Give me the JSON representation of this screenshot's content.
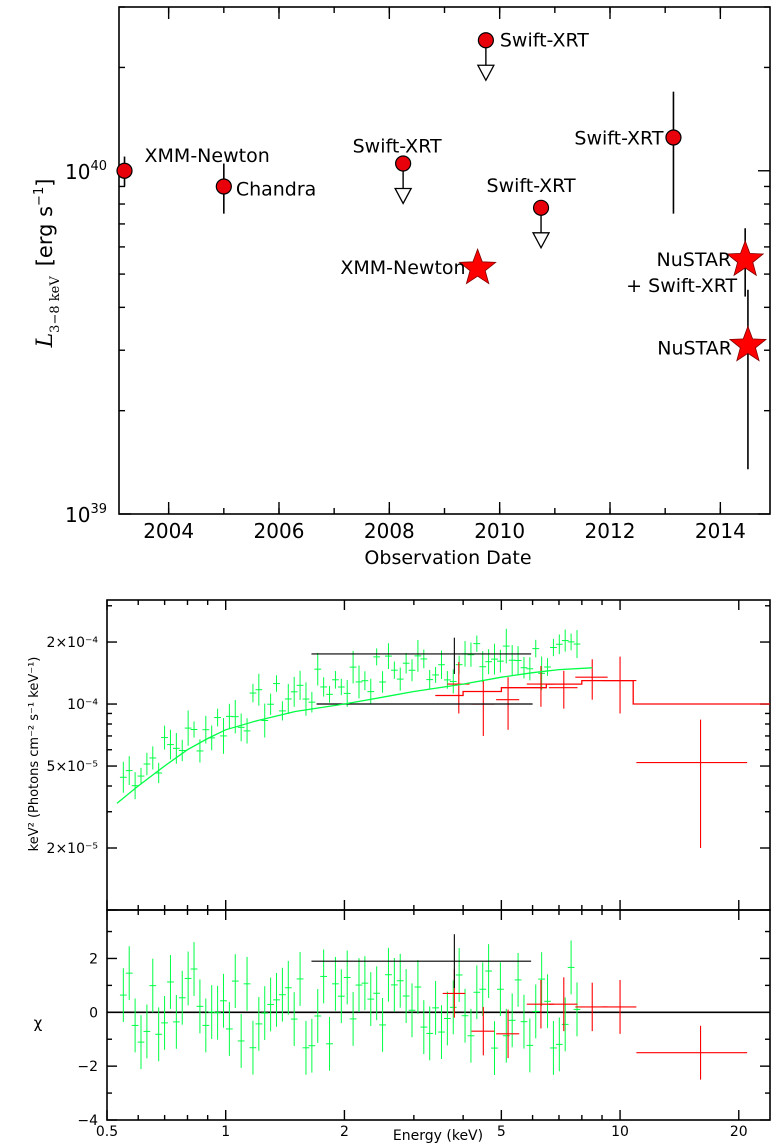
{
  "chart_data": [
    {
      "type": "scatter",
      "xlabel": "Observation Date",
      "ylabel": "L",
      "ylabel_sub": "3−8 keV",
      "ylabel_unit": "[erg s",
      "ylabel_exp": "−1",
      "ylabel_close": "]",
      "xlim": [
        2003.1,
        2014.9
      ],
      "ylim": [
        1e+39,
        3e+40
      ],
      "yscale": "log",
      "x_ticks": [
        "2004",
        "2006",
        "2008",
        "2010",
        "2012",
        "2014"
      ],
      "y_ticks": [
        {
          "base": "10",
          "exp": "39"
        },
        {
          "base": "10",
          "exp": "40"
        }
      ],
      "points": [
        {
          "label": "XMM-Newton",
          "x": 2003.2,
          "y": 1e+40,
          "yerr_lo": 9e+39,
          "yerr_hi": 1.1e+40,
          "marker": "circle"
        },
        {
          "label": "Chandra",
          "x": 2005.0,
          "y": 9e+39,
          "yerr_lo": 7.5e+39,
          "yerr_hi": 1.05e+40,
          "marker": "circle"
        },
        {
          "label": "Swift-XRT",
          "x": 2008.25,
          "y": 1.05e+40,
          "marker": "circle",
          "upper_limit": true
        },
        {
          "label": "Swift-XRT",
          "x": 2009.75,
          "y": 2.4e+40,
          "marker": "circle",
          "upper_limit": true
        },
        {
          "label": "XMM-Newton",
          "x": 2009.6,
          "y": 5.2e+39,
          "marker": "star"
        },
        {
          "label": "Swift-XRT",
          "x": 2010.75,
          "y": 7.8e+39,
          "marker": "circle",
          "upper_limit": true
        },
        {
          "label": "Swift-XRT",
          "x": 2013.15,
          "y": 1.25e+40,
          "yerr_lo": 7.5e+39,
          "yerr_hi": 1.7e+40,
          "marker": "circle"
        },
        {
          "label": "NuSTAR",
          "label2": "+ Swift-XRT",
          "x": 2014.45,
          "y": 5.5e+39,
          "yerr_lo": 4.3e+39,
          "yerr_hi": 6.8e+39,
          "marker": "star"
        },
        {
          "label": "NuSTAR",
          "x": 2014.5,
          "y": 3.1e+39,
          "yerr_lo": 1.35e+39,
          "yerr_hi": 4.5e+39,
          "marker": "star"
        }
      ]
    },
    {
      "type": "scatter",
      "title": "",
      "xlabel": "Energy (keV)",
      "ylabel": "keV² (Photons cm⁻² s⁻¹ keV⁻¹)",
      "xscale": "log",
      "yscale": "log",
      "xlim": [
        0.5,
        24
      ],
      "ylim": [
        1e-05,
        0.00032
      ],
      "y_ticks": [
        "2×10⁻⁴",
        "10⁻⁴",
        "5×10⁻⁵",
        "2×10⁻⁵"
      ],
      "y_tick_values": [
        0.0002,
        0.0001,
        5e-05,
        2e-05
      ],
      "series": [
        {
          "name": "",
          "color": "#ff0000",
          "kind": "data",
          "points": [
            [
              3.9,
              0.000125,
              0.25,
              3.5e-05
            ],
            [
              4.5,
              0.0001,
              0.3,
              3e-05
            ],
            [
              5.2,
              0.000105,
              0.35,
              3e-05
            ],
            [
              6.3,
              0.000125,
              0.5,
              2.8e-05
            ],
            [
              7.2,
              0.00012,
              0.6,
              2.5e-05
            ],
            [
              8.5,
              0.000135,
              0.8,
              3e-05
            ],
            [
              10.0,
              0.00013,
              1.0,
              4e-05
            ],
            [
              16.0,
              5.2e-05,
              5.0,
              3.2e-05
            ]
          ]
        },
        {
          "name": "",
          "color": "#000000",
          "kind": "data",
          "points": [
            [
              3.8,
              0.000175,
              2.15,
              3.5e-05
            ]
          ]
        },
        {
          "name": "",
          "color": "#ff0000",
          "kind": "model",
          "points": [
            [
              3.4,
              0.00011
            ],
            [
              4.0,
              0.00011
            ],
            [
              4.0,
              0.000115
            ],
            [
              5.0,
              0.000115
            ],
            [
              5.0,
              0.00012
            ],
            [
              6.5,
              0.00012
            ],
            [
              6.5,
              0.000125
            ],
            [
              8.0,
              0.000125
            ],
            [
              8.0,
              0.00013
            ],
            [
              10.8,
              0.00013
            ],
            [
              10.8,
              0.0001
            ],
            [
              24,
              0.0001
            ]
          ]
        },
        {
          "name": "",
          "color": "#000000",
          "kind": "model",
          "points": [
            [
              1.7,
              0.0001
            ],
            [
              6.0,
              0.0001
            ]
          ]
        },
        {
          "name": "",
          "color": "#00ff44",
          "kind": "model",
          "points": [
            [
              0.53,
              3.3e-05
            ],
            [
              0.6,
              4e-05
            ],
            [
              0.7,
              5e-05
            ],
            [
              0.8,
              6e-05
            ],
            [
              0.9,
              6.8e-05
            ],
            [
              1.0,
              7.5e-05
            ],
            [
              1.2,
              8.3e-05
            ],
            [
              1.5,
              9.2e-05
            ],
            [
              2.0,
              0.0001
            ],
            [
              2.5,
              0.000108
            ],
            [
              3.0,
              0.000115
            ],
            [
              4.0,
              0.000125
            ],
            [
              5.0,
              0.000135
            ],
            [
              6.0,
              0.000142
            ],
            [
              7.0,
              0.000147
            ],
            [
              8.5,
              0.00015
            ]
          ]
        }
      ]
    },
    {
      "type": "scatter",
      "xlabel": "Energy (keV)",
      "ylabel": "χ",
      "xscale": "log",
      "xlim": [
        0.5,
        24
      ],
      "ylim": [
        -4,
        3.8
      ],
      "x_ticks": [
        "0.5",
        "1",
        "2",
        "5",
        "10",
        "20"
      ],
      "x_tick_values": [
        0.5,
        1,
        2,
        5,
        10,
        20
      ],
      "y_ticks": [
        "2",
        "0",
        "−2",
        "−4"
      ],
      "y_tick_values": [
        2,
        0,
        -2,
        -4
      ],
      "series": [
        {
          "name": "",
          "color": "#ff0000",
          "kind": "data",
          "points": [
            [
              3.8,
              0.7,
              0.25,
              0.9
            ],
            [
              4.5,
              -0.7,
              0.3,
              0.9
            ],
            [
              5.2,
              -0.8,
              0.35,
              0.9
            ],
            [
              6.3,
              0.3,
              0.5,
              0.9
            ],
            [
              7.2,
              0.3,
              0.6,
              1.0
            ],
            [
              8.5,
              0.2,
              0.8,
              0.9
            ],
            [
              10.0,
              0.2,
              1.0,
              1.0
            ],
            [
              16.0,
              -1.5,
              5.0,
              1.0
            ]
          ]
        },
        {
          "name": "",
          "color": "#000000",
          "kind": "data",
          "points": [
            [
              3.8,
              1.9,
              2.15,
              1.0
            ]
          ]
        }
      ],
      "zero_line": 0
    }
  ]
}
